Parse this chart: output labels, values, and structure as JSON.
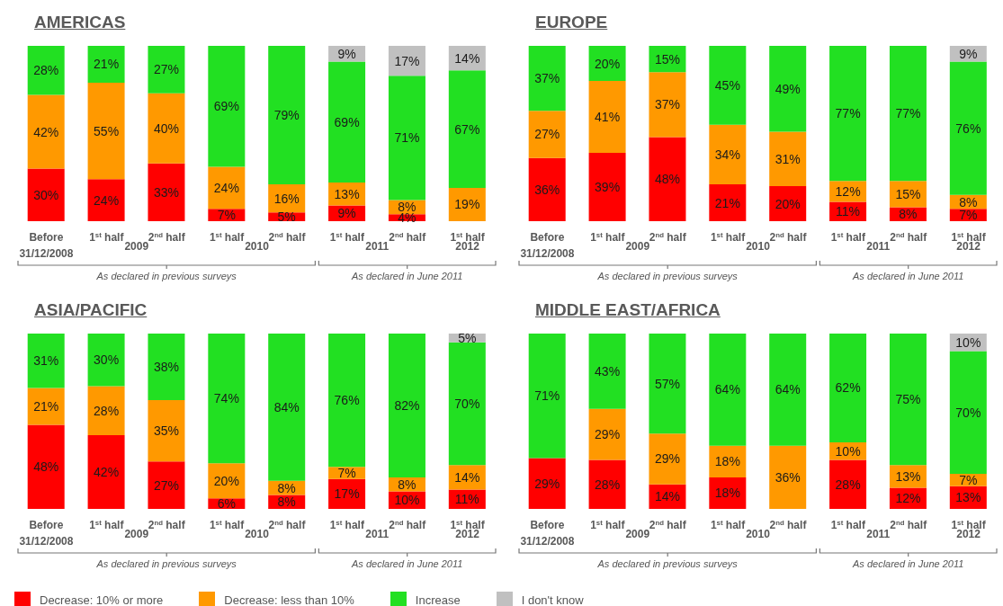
{
  "chart_data": [
    {
      "type": "bar",
      "title": "AMERICAS",
      "stacked": true,
      "categories": [
        "Before 31/12/2008",
        "1$^{st}$ half",
        "2$^{nd}$ half",
        "1$^{st}$ half",
        "2$^{nd}$ half",
        "1$^{st}$ half",
        "2$^{nd}$ half",
        "1$^{st}$ half"
      ],
      "annotations": [
        "2009",
        "2010",
        "2011",
        "2012",
        "As declared in previous surveys",
        "As declared in June 2011"
      ],
      "series": [
        {
          "color": "#ff0000",
          "values": [
            30,
            24,
            33,
            7,
            5,
            9,
            4,
            null
          ],
          "value_labels": [
            "30%",
            "24%",
            "33%",
            "7%",
            "5%",
            "9%",
            "4%",
            null
          ]
        },
        {
          "color": "#ff9900",
          "values": [
            42,
            55,
            40,
            24,
            16,
            13,
            8,
            19
          ],
          "value_labels": [
            "42%",
            "55%",
            "40%",
            "24%",
            "16%",
            "13%",
            "8%",
            "19%"
          ]
        },
        {
          "color": "#22e022",
          "values": [
            28,
            21,
            27,
            69,
            79,
            69,
            71,
            67
          ],
          "value_labels": [
            "28%",
            "21%",
            "27%",
            "69%",
            "79%",
            "69%",
            "71%",
            "67%"
          ]
        },
        {
          "color": "#c0c0c0",
          "values": [
            null,
            null,
            null,
            null,
            null,
            9,
            17,
            14
          ],
          "value_labels": [
            null,
            null,
            null,
            null,
            null,
            "9%",
            "17%",
            "14%"
          ]
        }
      ]
    },
    {
      "type": "bar",
      "title": "EUROPE",
      "stacked": true,
      "categories": [
        "Before 31/12/2008",
        "1$^{st}$ half",
        "2$^{nd}$ half",
        "1$^{st}$ half",
        "2$^{nd}$ half",
        "1$^{st}$ half",
        "2$^{nd}$ half",
        "1$^{st}$ half"
      ],
      "annotations": [
        "2009",
        "2010",
        "2011",
        "2012",
        "As declared in previous surveys",
        "As declared in June 2011"
      ],
      "series": [
        {
          "color": "#ff0000",
          "values": [
            36,
            39,
            48,
            21,
            20,
            11,
            8,
            7
          ],
          "value_labels": [
            "36%",
            "39%",
            "48%",
            "21%",
            "20%",
            "11%",
            "8%",
            "7%"
          ]
        },
        {
          "color": "#ff9900",
          "values": [
            27,
            41,
            37,
            34,
            31,
            12,
            15,
            8
          ],
          "value_labels": [
            "27%",
            "41%",
            "37%",
            "34%",
            "31%",
            "12%",
            "15%",
            "8%"
          ]
        },
        {
          "color": "#22e022",
          "values": [
            37,
            20,
            15,
            45,
            49,
            77,
            77,
            76
          ],
          "value_labels": [
            "37%",
            "20%",
            "15%",
            "45%",
            "49%",
            "77%",
            "77%",
            "76%"
          ]
        },
        {
          "color": "#c0c0c0",
          "values": [
            null,
            null,
            null,
            null,
            null,
            null,
            null,
            9
          ],
          "value_labels": [
            null,
            null,
            null,
            null,
            null,
            null,
            null,
            "9%"
          ]
        }
      ]
    },
    {
      "type": "bar",
      "title": "ASIA/PACIFIC",
      "stacked": true,
      "legend": "bottom",
      "categories": [
        "Before 31/12/2008",
        "1$^{st}$ half",
        "2$^{nd}$ half",
        "1$^{st}$ half",
        "2$^{nd}$ half",
        "1$^{st}$ half",
        "2$^{nd}$ half",
        "1$^{st}$ half"
      ],
      "annotations": [
        "2009",
        "2010",
        "2011",
        "2012",
        "As declared in previous surveys",
        "As declared in June 2011"
      ],
      "series": [
        {
          "name": "Decrease: 10% or more",
          "color": "#ff0000",
          "values": [
            48,
            42,
            27,
            6,
            8,
            17,
            10,
            11
          ],
          "value_labels": [
            "48%",
            "42%",
            "27%",
            "6%",
            "8%",
            "17%",
            "10%",
            "11%"
          ]
        },
        {
          "name": "Decrease: less than 10%",
          "color": "#ff9900",
          "values": [
            21,
            28,
            35,
            20,
            8,
            7,
            8,
            14
          ],
          "value_labels": [
            "21%",
            "28%",
            "35%",
            "20%",
            "8%",
            "7%",
            "8%",
            "14%"
          ]
        },
        {
          "name": "Increase",
          "color": "#22e022",
          "values": [
            31,
            30,
            38,
            74,
            84,
            76,
            82,
            70
          ],
          "value_labels": [
            "31%",
            "30%",
            "38%",
            "74%",
            "84%",
            "76%",
            "82%",
            "70%"
          ]
        },
        {
          "name": "I don't know",
          "color": "#c0c0c0",
          "values": [
            null,
            null,
            null,
            null,
            null,
            null,
            null,
            5
          ],
          "value_labels": [
            null,
            null,
            null,
            null,
            null,
            null,
            null,
            "5%"
          ]
        }
      ]
    },
    {
      "type": "bar",
      "title": "MIDDLE EAST/AFRICA",
      "stacked": true,
      "categories": [
        "Before 31/12/2008",
        "1$^{st}$ half",
        "2$^{nd}$ half",
        "1$^{st}$ half",
        "2$^{nd}$ half",
        "1$^{st}$ half",
        "2$^{nd}$ half",
        "1$^{st}$ half"
      ],
      "annotations": [
        "2009",
        "2010",
        "2011",
        "2012",
        "As declared in previous surveys",
        "As declared in June 2011"
      ],
      "series": [
        {
          "color": "#ff0000",
          "values": [
            29,
            28,
            14,
            18,
            null,
            28,
            12,
            13
          ],
          "value_labels": [
            "29%",
            "28%",
            "14%",
            "18%",
            null,
            "28%",
            "12%",
            "13%"
          ]
        },
        {
          "color": "#ff9900",
          "values": [
            null,
            29,
            29,
            18,
            36,
            10,
            13,
            7
          ],
          "value_labels": [
            null,
            "29%",
            "29%",
            "18%",
            "36%",
            "10%",
            "13%",
            "7%"
          ]
        },
        {
          "color": "#22e022",
          "values": [
            71,
            43,
            57,
            64,
            64,
            62,
            75,
            70
          ],
          "value_labels": [
            "71%",
            "43%",
            "57%",
            "64%",
            "64%",
            "62%",
            "75%",
            "70%"
          ]
        },
        {
          "color": "#c0c0c0",
          "values": [
            null,
            null,
            null,
            null,
            null,
            null,
            null,
            10
          ],
          "value_labels": [
            null,
            null,
            null,
            null,
            null,
            null,
            null,
            "10%"
          ]
        }
      ]
    }
  ]
}
